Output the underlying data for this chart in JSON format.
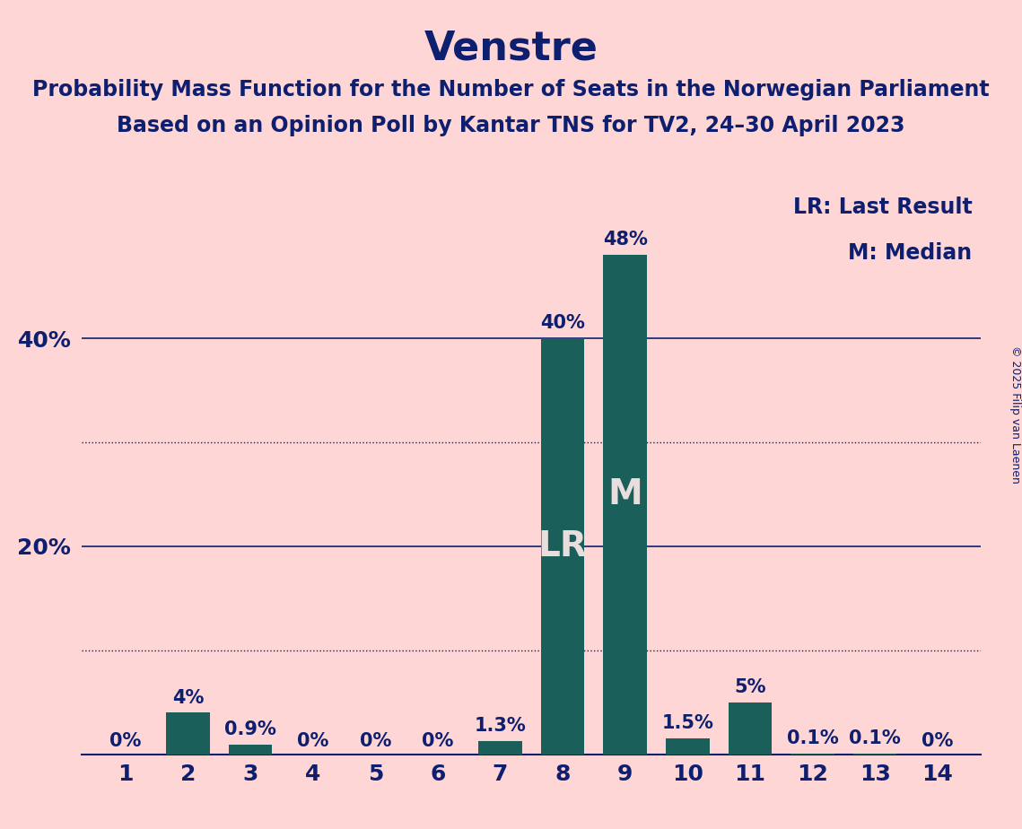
{
  "title": "Venstre",
  "subtitle1": "Probability Mass Function for the Number of Seats in the Norwegian Parliament",
  "subtitle2": "Based on an Opinion Poll by Kantar TNS for TV2, 24–30 April 2023",
  "copyright": "© 2025 Filip van Laenen",
  "categories": [
    1,
    2,
    3,
    4,
    5,
    6,
    7,
    8,
    9,
    10,
    11,
    12,
    13,
    14
  ],
  "values": [
    0.0,
    4.0,
    0.9,
    0.0,
    0.0,
    0.0,
    1.3,
    40.0,
    48.0,
    1.5,
    5.0,
    0.1,
    0.1,
    0.0
  ],
  "labels": [
    "0%",
    "4%",
    "0.9%",
    "0%",
    "0%",
    "0%",
    "1.3%",
    "40%",
    "48%",
    "1.5%",
    "5%",
    "0.1%",
    "0.1%",
    "0%"
  ],
  "bar_color": "#1a5f5a",
  "background_color": "#ffd6d6",
  "text_color": "#0d1f6e",
  "bar_label_color_inside": "#e8dede",
  "lr_bar_index": 7,
  "m_bar_index": 8,
  "legend_lr": "LR: Last Result",
  "legend_m": "M: Median",
  "solid_yticks": [
    20,
    40
  ],
  "dotted_yticks": [
    10,
    30
  ],
  "ylim": [
    0,
    55
  ],
  "title_fontsize": 32,
  "subtitle_fontsize": 17,
  "axis_fontsize": 18,
  "label_fontsize": 15,
  "legend_fontsize": 17,
  "copyright_fontsize": 9
}
